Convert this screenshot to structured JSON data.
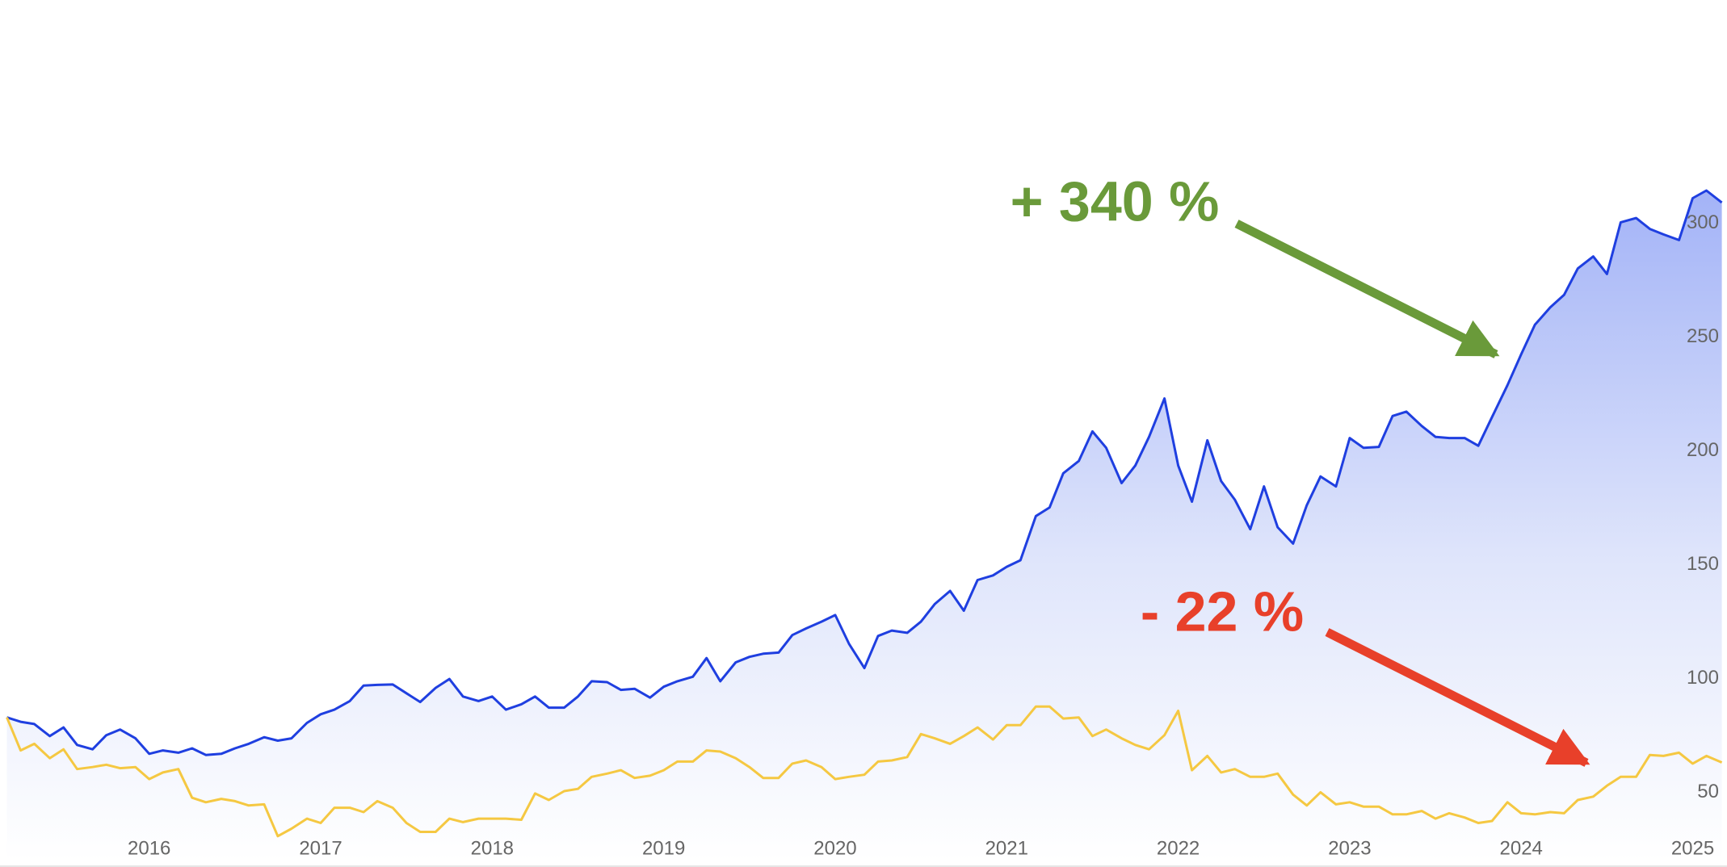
{
  "chart_data": {
    "type": "line",
    "annotations": [
      "+ 340 %",
      "- 22 %"
    ],
    "annotation_colors": [
      "#6a9a3a",
      "#e8402a"
    ],
    "x": [
      2015.17,
      2015.25,
      2015.33,
      2015.42,
      2015.5,
      2015.58,
      2015.67,
      2015.75,
      2015.83,
      2015.92,
      2016,
      2016.08,
      2016.17,
      2016.25,
      2016.33,
      2016.42,
      2016.5,
      2016.58,
      2016.67,
      2016.75,
      2016.83,
      2016.92,
      2017,
      2017.08,
      2017.17,
      2017.25,
      2017.33,
      2017.42,
      2017.5,
      2017.58,
      2017.67,
      2017.75,
      2017.83,
      2017.92,
      2018,
      2018.08,
      2018.17,
      2018.25,
      2018.33,
      2018.42,
      2018.5,
      2018.58,
      2018.67,
      2018.75,
      2018.83,
      2018.92,
      2019,
      2019.08,
      2019.17,
      2019.25,
      2019.33,
      2019.42,
      2019.5,
      2019.58,
      2019.67,
      2019.75,
      2019.83,
      2019.92,
      2020,
      2020.08,
      2020.17,
      2020.25,
      2020.33,
      2020.42,
      2020.5,
      2020.58,
      2020.67,
      2020.75,
      2020.83,
      2020.92,
      2021,
      2021.08,
      2021.17,
      2021.25,
      2021.33,
      2021.42,
      2021.5,
      2021.58,
      2021.67,
      2021.75,
      2021.83,
      2021.92,
      2022,
      2022.08,
      2022.17,
      2022.25,
      2022.33,
      2022.42,
      2022.5,
      2022.58,
      2022.67,
      2022.75,
      2022.83,
      2022.92,
      2023,
      2023.08,
      2023.17,
      2023.25,
      2023.33,
      2023.42,
      2023.5,
      2023.58,
      2023.67,
      2023.75,
      2023.83,
      2023.92,
      2024,
      2024.08,
      2024.17,
      2024.25,
      2024.33,
      2024.42,
      2024.5,
      2024.58,
      2024.67,
      2024.75,
      2024.83,
      2024.92,
      2025,
      2025.08,
      2025.17
    ],
    "series": [
      {
        "color": "#1f3fe0",
        "area": true,
        "values": [
          82.9,
          81,
          80,
          74.7,
          78.5,
          70.8,
          68.9,
          75.1,
          77.6,
          73.7,
          66.9,
          68.4,
          67.4,
          69.3,
          66.4,
          66.9,
          69.3,
          71.3,
          74.2,
          72.7,
          73.7,
          80.5,
          84.3,
          86.3,
          90.1,
          96.9,
          97.2,
          97.4,
          93.5,
          89.7,
          95.9,
          99.8,
          92.1,
          90.1,
          92.1,
          86.3,
          88.7,
          92.1,
          87.2,
          87.2,
          92.1,
          98.8,
          98.4,
          95,
          95.5,
          91.6,
          96.4,
          98.8,
          100.8,
          109,
          98.8,
          107.1,
          109.5,
          110.9,
          111.4,
          119.1,
          122,
          125,
          127.9,
          115.3,
          104.6,
          118.7,
          121.1,
          120.1,
          125,
          132.7,
          138.5,
          129.8,
          143.3,
          145.3,
          149.1,
          152,
          171.4,
          175.2,
          190.2,
          195.6,
          208.6,
          201.4,
          185.9,
          193.6,
          206.2,
          223.1,
          193.6,
          177.7,
          204.7,
          186.8,
          178.6,
          165.6,
          184.4,
          166.5,
          159.3,
          176.2,
          188.8,
          184.4,
          205.7,
          201.4,
          201.8,
          215.4,
          217.3,
          211,
          206.2,
          205.7,
          205.7,
          202.3,
          214.9,
          228.9,
          242.5,
          255.5,
          263.2,
          268.6,
          280.2,
          285.5,
          277.8,
          300.5,
          302.4,
          297.6,
          295.2,
          292.7,
          311.1,
          314.5,
          309.2
        ]
      },
      {
        "color": "#f5c842",
        "area": false,
        "values": [
          82.9,
          68.4,
          71.3,
          65,
          68.9,
          60.2,
          61.1,
          62.1,
          60.6,
          61.1,
          55.8,
          58.7,
          60.2,
          47.6,
          45.6,
          47.1,
          46.1,
          44.2,
          44.7,
          30.7,
          34,
          38.4,
          36.5,
          43.2,
          43.2,
          41.3,
          46.1,
          43.2,
          36.5,
          32.6,
          32.6,
          38.4,
          36.9,
          38.4,
          38.4,
          38.4,
          37.9,
          49.5,
          46.6,
          50.5,
          51.5,
          56.8,
          58.2,
          59.7,
          56.3,
          57.3,
          59.7,
          63.5,
          63.5,
          68.4,
          67.9,
          65,
          61.1,
          56.3,
          56.3,
          62.6,
          64,
          61.1,
          55.8,
          56.8,
          57.7,
          63.5,
          64,
          65.5,
          75.6,
          73.7,
          71.3,
          74.7,
          78.5,
          73.2,
          79.5,
          79.5,
          87.7,
          87.7,
          82.4,
          82.9,
          74.7,
          77.6,
          73.7,
          70.8,
          68.9,
          75.1,
          85.8,
          59.7,
          66,
          58.7,
          60.2,
          56.8,
          56.8,
          58.2,
          49,
          44.2,
          50,
          44.7,
          45.6,
          43.7,
          43.7,
          40.3,
          40.3,
          41.8,
          38.4,
          40.8,
          38.9,
          36.5,
          37.4,
          45.6,
          40.8,
          40.3,
          41.3,
          40.8,
          46.6,
          48.1,
          52.9,
          56.8,
          56.8,
          66.4,
          66,
          67.4,
          62.6,
          66,
          63.1
        ]
      }
    ],
    "xlim": [
      2015.13,
      2025.2
    ],
    "xticks": [
      2016,
      2017,
      2018,
      2019,
      2020,
      2021,
      2022,
      2023,
      2024,
      2025
    ],
    "ylim": [
      20,
      345
    ],
    "yticks": [
      50,
      100,
      150,
      200,
      250,
      300
    ],
    "grid": false
  }
}
